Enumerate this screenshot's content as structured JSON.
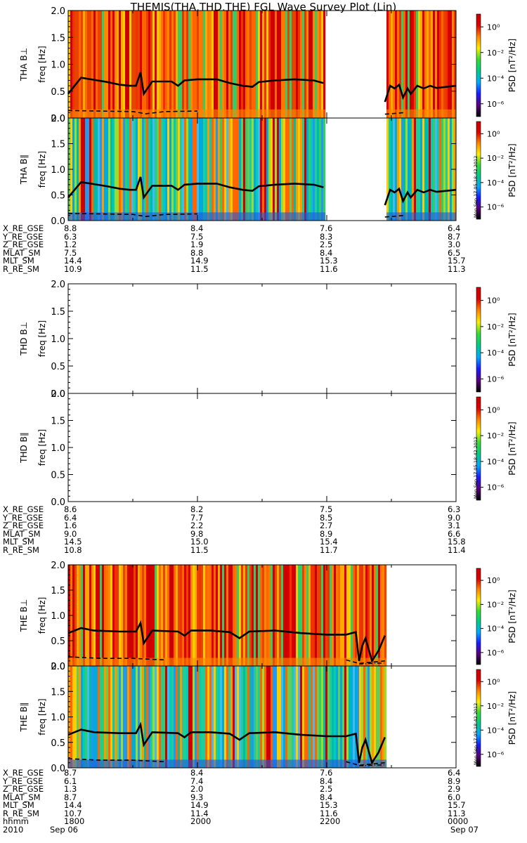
{
  "title": "THEMIS(THA,THD,THE) FGL Wave Survey Plot (Lin)",
  "colorbar": {
    "label": "PSD [nT²/Hz]",
    "tick_labels": [
      "10⁰",
      "10⁻²",
      "10⁻⁴",
      "10⁻⁶"
    ],
    "tick_exponents": [
      0,
      -2,
      -4,
      -6
    ],
    "range_exponent": [
      -7,
      1
    ],
    "colormap": [
      "#000000",
      "#5a007a",
      "#1a1aff",
      "#00aaff",
      "#00cc88",
      "#33dd33",
      "#ffee00",
      "#ff8800",
      "#dd0000",
      "#c80000"
    ]
  },
  "timestamp": "Mon Sep 17 05:18:42 2012",
  "chart_data": [
    {
      "type": "heatmap",
      "probe": "THA",
      "panel": "THA B⊥",
      "ylabel": "freq [Hz]",
      "ylim": [
        0,
        2.0
      ],
      "yticks": [
        "0.0",
        "0.5",
        "1.0",
        "1.5",
        "2.0"
      ],
      "xlim_hours": [
        18,
        24
      ],
      "data_gaps_hours": [
        [
          21.95,
          22.9
        ]
      ],
      "dominant_level": "high",
      "solid_line": [
        [
          18.0,
          0.45
        ],
        [
          18.1,
          0.6
        ],
        [
          18.2,
          0.75
        ],
        [
          18.35,
          0.72
        ],
        [
          18.6,
          0.67
        ],
        [
          18.8,
          0.62
        ],
        [
          18.95,
          0.6
        ],
        [
          19.05,
          0.6
        ],
        [
          19.12,
          0.85
        ],
        [
          19.17,
          0.45
        ],
        [
          19.3,
          0.68
        ],
        [
          19.6,
          0.68
        ],
        [
          19.7,
          0.6
        ],
        [
          19.8,
          0.7
        ],
        [
          20.0,
          0.72
        ],
        [
          20.3,
          0.72
        ],
        [
          20.5,
          0.65
        ],
        [
          20.7,
          0.6
        ],
        [
          20.85,
          0.58
        ],
        [
          20.95,
          0.67
        ],
        [
          21.2,
          0.7
        ],
        [
          21.5,
          0.72
        ],
        [
          21.8,
          0.7
        ],
        [
          21.95,
          0.65
        ],
        [
          22.9,
          0.3
        ],
        [
          22.98,
          0.6
        ],
        [
          23.05,
          0.55
        ],
        [
          23.12,
          0.62
        ],
        [
          23.18,
          0.38
        ],
        [
          23.25,
          0.55
        ],
        [
          23.3,
          0.45
        ],
        [
          23.4,
          0.6
        ],
        [
          23.5,
          0.55
        ],
        [
          23.6,
          0.6
        ],
        [
          23.7,
          0.56
        ],
        [
          24.0,
          0.6
        ]
      ],
      "dashed_line": [
        [
          18.0,
          0.14
        ],
        [
          18.5,
          0.13
        ],
        [
          19.0,
          0.12
        ],
        [
          19.2,
          0.08
        ],
        [
          19.5,
          0.12
        ],
        [
          20.0,
          0.13
        ],
        [
          21.0,
          0.13
        ],
        [
          21.95,
          0.12
        ],
        [
          22.9,
          0.07
        ],
        [
          23.2,
          0.1
        ],
        [
          24.0,
          0.1
        ]
      ],
      "dash_dot_line": [
        [
          18.0,
          0.06
        ],
        [
          19.5,
          0.07
        ],
        [
          21.95,
          0.07
        ],
        [
          22.9,
          0.03
        ],
        [
          24.0,
          0.05
        ]
      ]
    },
    {
      "type": "heatmap",
      "probe": "THA",
      "panel": "THA B∥",
      "ylabel": "freq [Hz]",
      "ylim": [
        0,
        2.0
      ],
      "yticks": [
        "0.0",
        "0.5",
        "1.0",
        "1.5",
        "2.0"
      ],
      "xlim_hours": [
        18,
        24
      ],
      "data_gaps_hours": [
        [
          21.95,
          22.9
        ]
      ],
      "dominant_level": "low",
      "solid_line": [
        [
          18.0,
          0.45
        ],
        [
          18.1,
          0.6
        ],
        [
          18.2,
          0.75
        ],
        [
          18.35,
          0.72
        ],
        [
          18.6,
          0.67
        ],
        [
          18.8,
          0.62
        ],
        [
          18.95,
          0.6
        ],
        [
          19.05,
          0.6
        ],
        [
          19.12,
          0.85
        ],
        [
          19.17,
          0.45
        ],
        [
          19.3,
          0.68
        ],
        [
          19.6,
          0.68
        ],
        [
          19.7,
          0.6
        ],
        [
          19.8,
          0.7
        ],
        [
          20.0,
          0.72
        ],
        [
          20.3,
          0.72
        ],
        [
          20.5,
          0.65
        ],
        [
          20.7,
          0.6
        ],
        [
          20.85,
          0.58
        ],
        [
          20.95,
          0.67
        ],
        [
          21.2,
          0.7
        ],
        [
          21.5,
          0.72
        ],
        [
          21.8,
          0.7
        ],
        [
          21.95,
          0.65
        ],
        [
          22.9,
          0.3
        ],
        [
          22.98,
          0.6
        ],
        [
          23.05,
          0.55
        ],
        [
          23.12,
          0.62
        ],
        [
          23.18,
          0.38
        ],
        [
          23.25,
          0.55
        ],
        [
          23.3,
          0.45
        ],
        [
          23.4,
          0.6
        ],
        [
          23.5,
          0.55
        ],
        [
          23.6,
          0.6
        ],
        [
          23.7,
          0.56
        ],
        [
          24.0,
          0.6
        ]
      ],
      "dashed_line": [
        [
          18.0,
          0.14
        ],
        [
          18.5,
          0.13
        ],
        [
          19.0,
          0.12
        ],
        [
          19.2,
          0.08
        ],
        [
          19.5,
          0.12
        ],
        [
          20.0,
          0.13
        ],
        [
          21.0,
          0.13
        ],
        [
          21.95,
          0.12
        ],
        [
          22.9,
          0.07
        ],
        [
          23.2,
          0.1
        ],
        [
          24.0,
          0.1
        ]
      ],
      "dash_dot_line": [
        [
          18.0,
          0.06
        ],
        [
          19.5,
          0.07
        ],
        [
          21.95,
          0.07
        ],
        [
          22.9,
          0.03
        ],
        [
          24.0,
          0.05
        ]
      ]
    },
    {
      "type": "heatmap",
      "probe": "THD",
      "panel": "THD B⊥",
      "ylabel": "freq [Hz]",
      "ylim": [
        0,
        2.0
      ],
      "yticks": [
        "0.0",
        "0.5",
        "1.0",
        "1.5",
        "2.0"
      ],
      "xlim_hours": [
        18,
        24
      ],
      "data_gaps_hours": [
        [
          18,
          24
        ]
      ],
      "dominant_level": "none",
      "solid_line": [],
      "dashed_line": [],
      "dash_dot_line": []
    },
    {
      "type": "heatmap",
      "probe": "THD",
      "panel": "THD B∥",
      "ylabel": "freq [Hz]",
      "ylim": [
        0,
        2.0
      ],
      "yticks": [
        "0.0",
        "0.5",
        "1.0",
        "1.5",
        "2.0"
      ],
      "xlim_hours": [
        18,
        24
      ],
      "data_gaps_hours": [
        [
          18,
          24
        ]
      ],
      "dominant_level": "none",
      "solid_line": [],
      "dashed_line": [],
      "dash_dot_line": []
    },
    {
      "type": "heatmap",
      "probe": "THE",
      "panel": "THE B⊥",
      "ylabel": "freq [Hz]",
      "ylim": [
        0,
        2.0
      ],
      "yticks": [
        "0.0",
        "0.5",
        "1.0",
        "1.5",
        "2.0"
      ],
      "xlim_hours": [
        18,
        24
      ],
      "data_gaps_hours": [
        [
          22.9,
          24
        ]
      ],
      "dominant_level": "high",
      "solid_line": [
        [
          18.0,
          0.65
        ],
        [
          18.2,
          0.75
        ],
        [
          18.4,
          0.7
        ],
        [
          18.8,
          0.68
        ],
        [
          19.05,
          0.68
        ],
        [
          19.12,
          0.85
        ],
        [
          19.17,
          0.45
        ],
        [
          19.3,
          0.7
        ],
        [
          19.7,
          0.68
        ],
        [
          19.8,
          0.6
        ],
        [
          19.9,
          0.7
        ],
        [
          20.2,
          0.7
        ],
        [
          20.5,
          0.67
        ],
        [
          20.65,
          0.55
        ],
        [
          20.8,
          0.68
        ],
        [
          21.2,
          0.7
        ],
        [
          21.6,
          0.65
        ],
        [
          22.0,
          0.62
        ],
        [
          22.3,
          0.62
        ],
        [
          22.45,
          0.67
        ],
        [
          22.5,
          0.1
        ],
        [
          22.55,
          0.4
        ],
        [
          22.6,
          0.55
        ],
        [
          22.7,
          0.1
        ],
        [
          22.8,
          0.3
        ],
        [
          22.9,
          0.6
        ]
      ],
      "dashed_line": [
        [
          18.0,
          0.18
        ],
        [
          18.5,
          0.15
        ],
        [
          19.0,
          0.15
        ],
        [
          19.5,
          0.12
        ],
        [
          20.5,
          0.12
        ],
        [
          21.5,
          0.12
        ],
        [
          22.3,
          0.12
        ],
        [
          22.5,
          0.05
        ],
        [
          22.9,
          0.1
        ]
      ],
      "dash_dot_line": [
        [
          18.0,
          0.06
        ],
        [
          19.5,
          0.07
        ],
        [
          21.0,
          0.07
        ],
        [
          22.5,
          0.04
        ],
        [
          22.9,
          0.06
        ]
      ]
    },
    {
      "type": "heatmap",
      "probe": "THE",
      "panel": "THE B∥",
      "ylabel": "freq [Hz]",
      "ylim": [
        0,
        2.0
      ],
      "yticks": [
        "0.0",
        "0.5",
        "1.0",
        "1.5",
        "2.0"
      ],
      "xlim_hours": [
        18,
        24
      ],
      "data_gaps_hours": [
        [
          22.9,
          24
        ]
      ],
      "dominant_level": "low",
      "solid_line": [
        [
          18.0,
          0.65
        ],
        [
          18.2,
          0.75
        ],
        [
          18.4,
          0.7
        ],
        [
          18.8,
          0.68
        ],
        [
          19.05,
          0.68
        ],
        [
          19.12,
          0.85
        ],
        [
          19.17,
          0.45
        ],
        [
          19.3,
          0.7
        ],
        [
          19.7,
          0.68
        ],
        [
          19.8,
          0.6
        ],
        [
          19.9,
          0.7
        ],
        [
          20.2,
          0.7
        ],
        [
          20.5,
          0.67
        ],
        [
          20.65,
          0.55
        ],
        [
          20.8,
          0.68
        ],
        [
          21.2,
          0.7
        ],
        [
          21.6,
          0.65
        ],
        [
          22.0,
          0.62
        ],
        [
          22.3,
          0.62
        ],
        [
          22.45,
          0.67
        ],
        [
          22.5,
          0.1
        ],
        [
          22.55,
          0.4
        ],
        [
          22.6,
          0.55
        ],
        [
          22.7,
          0.1
        ],
        [
          22.8,
          0.3
        ],
        [
          22.9,
          0.6
        ]
      ],
      "dashed_line": [
        [
          18.0,
          0.18
        ],
        [
          18.5,
          0.15
        ],
        [
          19.0,
          0.15
        ],
        [
          19.5,
          0.12
        ],
        [
          20.5,
          0.12
        ],
        [
          21.5,
          0.12
        ],
        [
          22.3,
          0.12
        ],
        [
          22.5,
          0.05
        ],
        [
          22.9,
          0.1
        ]
      ],
      "dash_dot_line": [
        [
          18.0,
          0.06
        ],
        [
          19.5,
          0.07
        ],
        [
          21.0,
          0.07
        ],
        [
          22.5,
          0.04
        ],
        [
          22.9,
          0.06
        ]
      ]
    }
  ],
  "ephemeris": [
    {
      "rows": [
        {
          "label": "X_RE_GSE",
          "values": [
            "8.8",
            "8.4",
            "7.6",
            "6.4"
          ]
        },
        {
          "label": "Y_RE_GSE",
          "values": [
            "6.3",
            "7.5",
            "8.3",
            "8.7"
          ]
        },
        {
          "label": "Z_RE_GSE",
          "values": [
            "1.2",
            "1.9",
            "2.5",
            "3.0"
          ]
        },
        {
          "label": "MLAT_SM",
          "values": [
            "7.5",
            "8.8",
            "8.4",
            "6.5"
          ]
        },
        {
          "label": "MLT_SM",
          "values": [
            "14.4",
            "14.9",
            "15.3",
            "15.7"
          ]
        },
        {
          "label": "R_RE_SM",
          "values": [
            "10.9",
            "11.5",
            "11.6",
            "11.3"
          ]
        }
      ]
    },
    {
      "rows": [
        {
          "label": "X_RE_GSE",
          "values": [
            "8.6",
            "8.2",
            "7.5",
            "6.3"
          ]
        },
        {
          "label": "Y_RE_GSE",
          "values": [
            "6.4",
            "7.7",
            "8.5",
            "9.0"
          ]
        },
        {
          "label": "Z_RE_GSE",
          "values": [
            "1.6",
            "2.2",
            "2.7",
            "3.1"
          ]
        },
        {
          "label": "MLAT_SM",
          "values": [
            "9.0",
            "9.8",
            "8.9",
            "6.6"
          ]
        },
        {
          "label": "MLT_SM",
          "values": [
            "14.5",
            "15.0",
            "15.4",
            "15.8"
          ]
        },
        {
          "label": "R_RE_SM",
          "values": [
            "10.8",
            "11.5",
            "11.7",
            "11.4"
          ]
        }
      ]
    },
    {
      "rows": [
        {
          "label": "X_RE_GSE",
          "values": [
            "8.7",
            "8.4",
            "7.6",
            "6.4"
          ]
        },
        {
          "label": "Y_RE_GSE",
          "values": [
            "6.1",
            "7.4",
            "8.4",
            "8.9"
          ]
        },
        {
          "label": "Z_RE_GSE",
          "values": [
            "1.3",
            "2.0",
            "2.5",
            "2.9"
          ]
        },
        {
          "label": "MLAT_SM",
          "values": [
            "8.7",
            "9.3",
            "8.4",
            "6.0"
          ]
        },
        {
          "label": "MLT_SM",
          "values": [
            "14.4",
            "14.9",
            "15.3",
            "15.7"
          ]
        },
        {
          "label": "R_RE_SM",
          "values": [
            "10.7",
            "11.4",
            "11.6",
            "11.3"
          ]
        },
        {
          "label": "hhmm",
          "values": [
            "1800",
            "2000",
            "2200",
            "0000"
          ]
        },
        {
          "label": "2010",
          "values": [
            "Sep 06",
            "",
            "",
            "Sep 07"
          ]
        }
      ]
    }
  ]
}
